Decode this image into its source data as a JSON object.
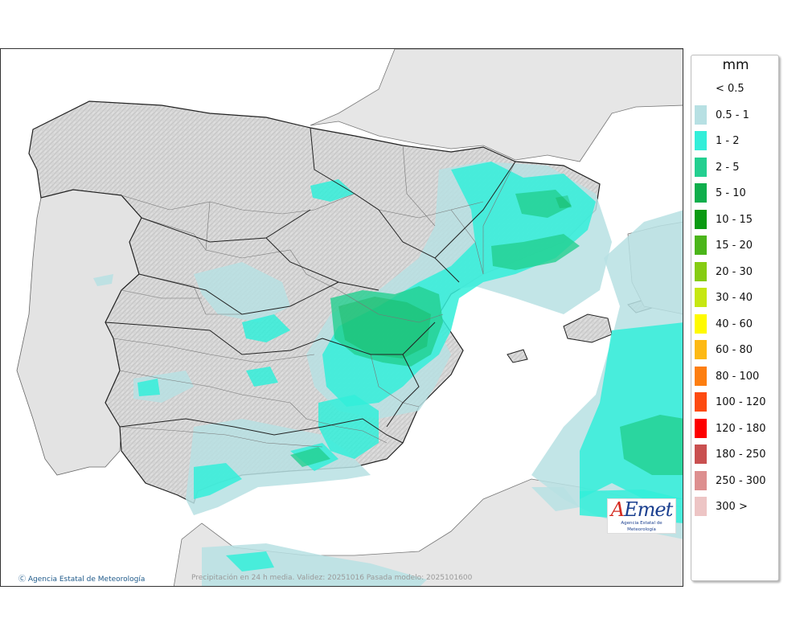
{
  "legend": {
    "unit": "mm",
    "entries": [
      {
        "label": "< 0.5",
        "color": "#ffffff"
      },
      {
        "label": "0.5 - 1",
        "color": "#b7e0e3"
      },
      {
        "label": "1 - 2",
        "color": "#33eed9"
      },
      {
        "label": "2 - 5",
        "color": "#23cf90"
      },
      {
        "label": "5 - 10",
        "color": "#0fae4c"
      },
      {
        "label": "10 - 15",
        "color": "#0a9a12"
      },
      {
        "label": "15 - 20",
        "color": "#4bb51a"
      },
      {
        "label": "20 - 30",
        "color": "#86cc12"
      },
      {
        "label": "30 - 40",
        "color": "#c6e712"
      },
      {
        "label": "40 - 60",
        "color": "#fffa00"
      },
      {
        "label": "60 - 80",
        "color": "#fdb914"
      },
      {
        "label": "80 - 100",
        "color": "#fd7e10"
      },
      {
        "label": "100 - 120",
        "color": "#fd4a10"
      },
      {
        "label": "120 - 180",
        "color": "#fd0000"
      },
      {
        "label": "180 - 250",
        "color": "#c95050"
      },
      {
        "label": "250 - 300",
        "color": "#dd8f8f"
      },
      {
        "label": "300 >",
        "color": "#edc5c5"
      }
    ]
  },
  "map": {
    "credit": "Agencia Estatal de Meteorología",
    "caption": "Precipitación en 24 h media. Validez: 20251016 Pasada modelo: 2025101600",
    "logo_text": "AEmet",
    "logo_subtitle": "Agencia Estatal de Meteorología",
    "colors": {
      "sea": "#ffffff",
      "land_spain": "#dcdcdc",
      "land_other": "#e6e6e6",
      "borders": "#555555"
    }
  }
}
